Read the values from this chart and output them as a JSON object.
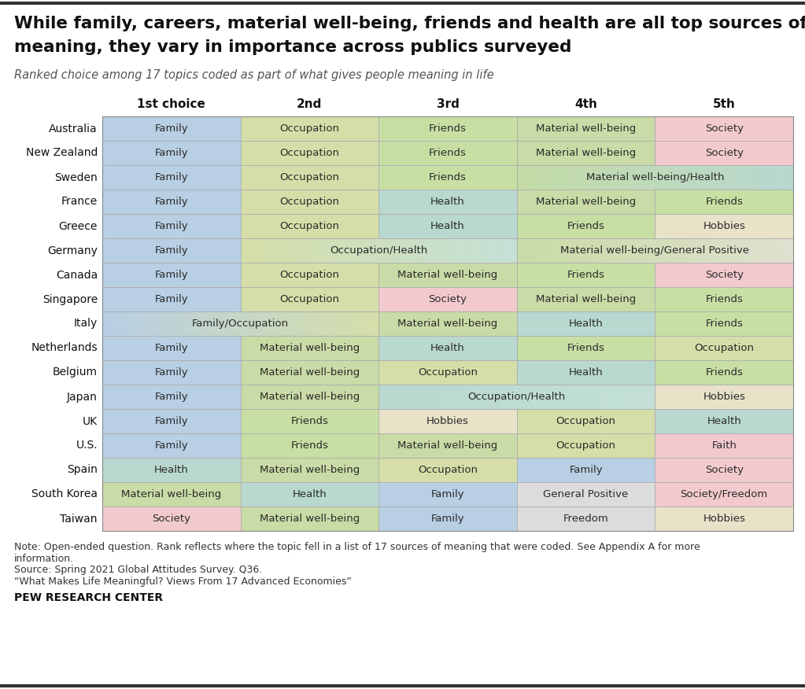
{
  "title_line1": "While family, careers, material well-being, friends and health are all top sources of",
  "title_line2": "meaning, they vary in importance across publics surveyed",
  "subtitle": "Ranked choice among 17 topics coded as part of what gives people meaning in life",
  "col_headers": [
    "1st choice",
    "2nd",
    "3rd",
    "4th",
    "5th"
  ],
  "countries": [
    "Australia",
    "New Zealand",
    "Sweden",
    "France",
    "Greece",
    "Germany",
    "Canada",
    "Singapore",
    "Italy",
    "Netherlands",
    "Belgium",
    "Japan",
    "UK",
    "U.S.",
    "Spain",
    "South Korea",
    "Taiwan"
  ],
  "cell_colors": [
    [
      "#b8cfe4",
      "#d5dea8",
      "#c8dfa4",
      "#c9dba6",
      "#f2cace"
    ],
    [
      "#b8cfe4",
      "#d5dea8",
      "#c8dfa4",
      "#c9dba6",
      "#f2cace"
    ],
    [
      "#b8cfe4",
      "#d5dea8",
      "#c8dfa4",
      "#c4e0d6",
      "#c4e0d6"
    ],
    [
      "#b8cfe4",
      "#d5dea8",
      "#b8d8d0",
      "#c9dba6",
      "#c8dfa4"
    ],
    [
      "#b8cfe4",
      "#d5dea8",
      "#b8d8d0",
      "#c8dfa4",
      "#e8e2c8"
    ],
    [
      "#b8cfe4",
      "#d5dea8",
      "#c4e0d6",
      "#c9dba6",
      "#e8e6d4"
    ],
    [
      "#b8cfe4",
      "#d5dea8",
      "#c9dba6",
      "#c8dfa4",
      "#f2cace"
    ],
    [
      "#b8cfe4",
      "#d5dea8",
      "#f2cace",
      "#c9dba6",
      "#c8dfa4"
    ],
    [
      "#b8cfe4",
      "#d5dea8",
      "#c9dba6",
      "#b8d8d0",
      "#c8dfa4"
    ],
    [
      "#b8cfe4",
      "#c9dba6",
      "#b8d8d0",
      "#c8dfa4",
      "#d5dea8"
    ],
    [
      "#b8cfe4",
      "#c9dba6",
      "#d5dea8",
      "#b8d8d0",
      "#c8dfa4"
    ],
    [
      "#b8cfe4",
      "#c9dba6",
      "#b8d8d0",
      "#c4e0d6",
      "#e8e2c8"
    ],
    [
      "#b8cfe4",
      "#c8dfa4",
      "#e8e2c8",
      "#d5dea8",
      "#b8d8d0"
    ],
    [
      "#b8cfe4",
      "#c8dfa4",
      "#c9dba6",
      "#d5dea8",
      "#f2cace"
    ],
    [
      "#b8d8d0",
      "#c9dba6",
      "#d5dea8",
      "#b8cfe4",
      "#f2cace"
    ],
    [
      "#c9dba6",
      "#b8d8d0",
      "#b8cfe4",
      "#dcdcdc",
      "#f2cace"
    ],
    [
      "#f2cace",
      "#c9dba6",
      "#b8cfe4",
      "#dcdcdc",
      "#e8e2c8"
    ]
  ],
  "row_structures": [
    [
      [
        0,
        1,
        "Family"
      ],
      [
        1,
        2,
        "Occupation"
      ],
      [
        2,
        3,
        "Friends"
      ],
      [
        3,
        4,
        "Material well-being"
      ],
      [
        4,
        5,
        "Society"
      ]
    ],
    [
      [
        0,
        1,
        "Family"
      ],
      [
        1,
        2,
        "Occupation"
      ],
      [
        2,
        3,
        "Friends"
      ],
      [
        3,
        4,
        "Material well-being"
      ],
      [
        4,
        5,
        "Society"
      ]
    ],
    [
      [
        0,
        1,
        "Family"
      ],
      [
        1,
        2,
        "Occupation"
      ],
      [
        2,
        3,
        "Friends"
      ],
      [
        3,
        5,
        "Material well-being/Health"
      ]
    ],
    [
      [
        0,
        1,
        "Family"
      ],
      [
        1,
        2,
        "Occupation"
      ],
      [
        2,
        3,
        "Health"
      ],
      [
        3,
        4,
        "Material well-being"
      ],
      [
        4,
        5,
        "Friends"
      ]
    ],
    [
      [
        0,
        1,
        "Family"
      ],
      [
        1,
        2,
        "Occupation"
      ],
      [
        2,
        3,
        "Health"
      ],
      [
        3,
        4,
        "Friends"
      ],
      [
        4,
        5,
        "Hobbies"
      ]
    ],
    [
      [
        0,
        1,
        "Family"
      ],
      [
        1,
        3,
        "Occupation/Health"
      ],
      [
        3,
        5,
        "Material well-being/General Positive"
      ]
    ],
    [
      [
        0,
        1,
        "Family"
      ],
      [
        1,
        2,
        "Occupation"
      ],
      [
        2,
        3,
        "Material well-being"
      ],
      [
        3,
        4,
        "Friends"
      ],
      [
        4,
        5,
        "Society"
      ]
    ],
    [
      [
        0,
        1,
        "Family"
      ],
      [
        1,
        2,
        "Occupation"
      ],
      [
        2,
        3,
        "Society"
      ],
      [
        3,
        4,
        "Material well-being"
      ],
      [
        4,
        5,
        "Friends"
      ]
    ],
    [
      [
        0,
        2,
        "Family/Occupation"
      ],
      [
        2,
        3,
        "Material well-being"
      ],
      [
        3,
        4,
        "Health"
      ],
      [
        4,
        5,
        "Friends"
      ]
    ],
    [
      [
        0,
        1,
        "Family"
      ],
      [
        1,
        2,
        "Material well-being"
      ],
      [
        2,
        3,
        "Health"
      ],
      [
        3,
        4,
        "Friends"
      ],
      [
        4,
        5,
        "Occupation"
      ]
    ],
    [
      [
        0,
        1,
        "Family"
      ],
      [
        1,
        2,
        "Material well-being"
      ],
      [
        2,
        3,
        "Occupation"
      ],
      [
        3,
        4,
        "Health"
      ],
      [
        4,
        5,
        "Friends"
      ]
    ],
    [
      [
        0,
        1,
        "Family"
      ],
      [
        1,
        2,
        "Material well-being"
      ],
      [
        2,
        4,
        "Occupation/Health"
      ],
      [
        4,
        5,
        "Hobbies"
      ]
    ],
    [
      [
        0,
        1,
        "Family"
      ],
      [
        1,
        2,
        "Friends"
      ],
      [
        2,
        3,
        "Hobbies"
      ],
      [
        3,
        4,
        "Occupation"
      ],
      [
        4,
        5,
        "Health"
      ]
    ],
    [
      [
        0,
        1,
        "Family"
      ],
      [
        1,
        2,
        "Friends"
      ],
      [
        2,
        3,
        "Material well-being"
      ],
      [
        3,
        4,
        "Occupation"
      ],
      [
        4,
        5,
        "Faith"
      ]
    ],
    [
      [
        0,
        1,
        "Health"
      ],
      [
        1,
        2,
        "Material well-being"
      ],
      [
        2,
        3,
        "Occupation"
      ],
      [
        3,
        4,
        "Family"
      ],
      [
        4,
        5,
        "Society"
      ]
    ],
    [
      [
        0,
        1,
        "Material well-being"
      ],
      [
        1,
        2,
        "Health"
      ],
      [
        2,
        3,
        "Family"
      ],
      [
        3,
        4,
        "General Positive"
      ],
      [
        4,
        5,
        "Society/Freedom"
      ]
    ],
    [
      [
        0,
        1,
        "Society"
      ],
      [
        1,
        2,
        "Material well-being"
      ],
      [
        2,
        3,
        "Family"
      ],
      [
        3,
        4,
        "Freedom"
      ],
      [
        4,
        5,
        "Hobbies"
      ]
    ]
  ],
  "gradient_cells": {
    "2_3": [
      "#c4dba6",
      "#b8d8d0"
    ],
    "5_1": [
      "#d5dea8",
      "#c4e0d6"
    ],
    "5_3": [
      "#c9dba6",
      "#e0e0d0"
    ],
    "8_0": [
      "#b8cfe4",
      "#d5dea8"
    ],
    "11_2": [
      "#b8d8d0",
      "#c4e0d6"
    ]
  },
  "note_lines": [
    "Note: Open-ended question. Rank reflects where the topic fell in a list of 17 sources of meaning that were coded. See Appendix A for more",
    "information.",
    "Source: Spring 2021 Global Attitudes Survey. Q36.",
    "“What Makes Life Meaningful? Views From 17 Advanced Economies”"
  ],
  "footer": "PEW RESEARCH CENTER",
  "bg_color": "#ffffff"
}
